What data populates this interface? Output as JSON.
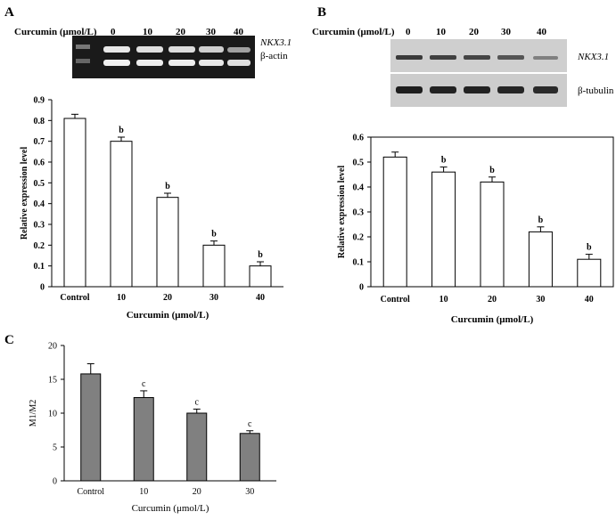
{
  "panels": {
    "A": {
      "letter": "A",
      "header_label": "Curcumin (μmol/L)",
      "lanes": [
        "0",
        "10",
        "20",
        "30",
        "40"
      ],
      "gel_labels": [
        "NKX3.1",
        "β-actin"
      ]
    },
    "B": {
      "letter": "B",
      "header_label": "Curcumin (μmol/L)",
      "lanes": [
        "0",
        "10",
        "20",
        "30",
        "40"
      ],
      "gel_labels": [
        "NKX3.1",
        "β-tubulin"
      ]
    },
    "C": {
      "letter": "C"
    }
  },
  "colors": {
    "bar_fill_A": "#ffffff",
    "bar_fill_B": "#ffffff",
    "bar_fill_C": "#808080",
    "bar_stroke": "#000000"
  },
  "chart_data": [
    {
      "id": "A",
      "type": "bar",
      "categories": [
        "Control",
        "10",
        "20",
        "30",
        "40"
      ],
      "values": [
        0.81,
        0.7,
        0.43,
        0.2,
        0.1
      ],
      "errors": [
        0.02,
        0.02,
        0.02,
        0.02,
        0.02
      ],
      "annotations": [
        "",
        "b",
        "b",
        "b",
        "b"
      ],
      "xlabel": "Curcumin (μmol/L)",
      "ylabel": "Relative expression level",
      "ylim": [
        0,
        0.9
      ],
      "yticks": [
        "0",
        "0.1",
        "0.2",
        "0.3",
        "0.4",
        "0.5",
        "0.6",
        "0.7",
        "0.8",
        "0.9"
      ]
    },
    {
      "id": "B",
      "type": "bar",
      "categories": [
        "Control",
        "10",
        "20",
        "30",
        "40"
      ],
      "values": [
        0.52,
        0.46,
        0.42,
        0.22,
        0.11
      ],
      "errors": [
        0.02,
        0.02,
        0.02,
        0.02,
        0.02
      ],
      "annotations": [
        "",
        "b",
        "b",
        "b",
        "b"
      ],
      "xlabel": "Curcumin (μmol/L)",
      "ylabel": "Relative expression level",
      "ylim": [
        0,
        0.6
      ],
      "yticks": [
        "0",
        "0.1",
        "0.2",
        "0.3",
        "0.4",
        "0.5",
        "0.6"
      ]
    },
    {
      "id": "C",
      "type": "bar",
      "categories": [
        "Control",
        "10",
        "20",
        "30"
      ],
      "values": [
        15.8,
        12.3,
        10.0,
        7.0
      ],
      "errors": [
        1.5,
        1.0,
        0.6,
        0.4
      ],
      "annotations": [
        "",
        "c",
        "c",
        "c"
      ],
      "xlabel": "Curcumin (μmol/L)",
      "ylabel": "M1/M2",
      "ylim": [
        0,
        20
      ],
      "yticks": [
        "0",
        "5",
        "10",
        "15",
        "20"
      ]
    }
  ]
}
